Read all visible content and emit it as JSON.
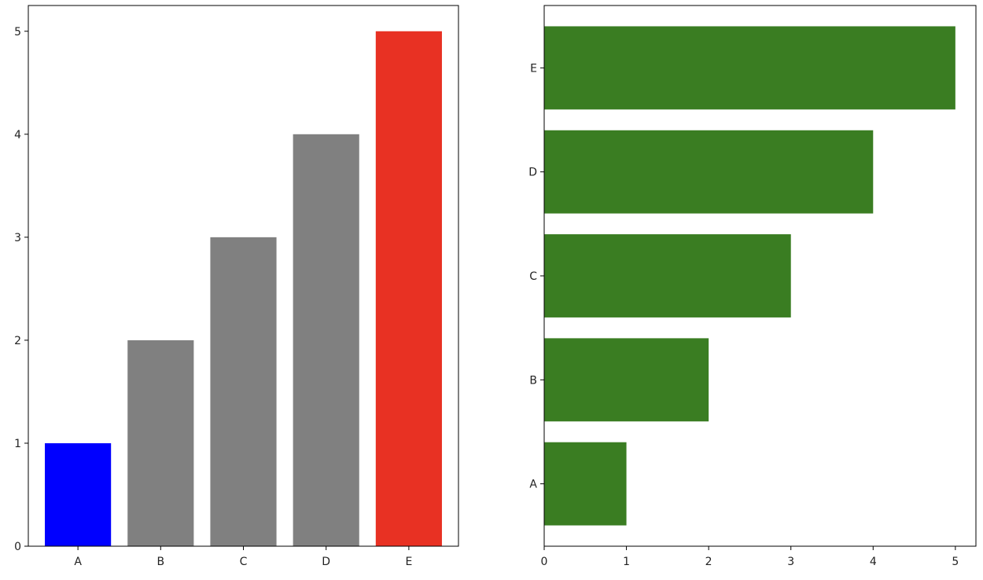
{
  "chart_data": [
    {
      "type": "bar",
      "orientation": "vertical",
      "title": "",
      "xlabel": "",
      "ylabel": "",
      "categories": [
        "A",
        "B",
        "C",
        "D",
        "E"
      ],
      "values": [
        1,
        2,
        3,
        4,
        5
      ],
      "bar_colors": [
        "#0000ff",
        "#808080",
        "#808080",
        "#808080",
        "#e83123"
      ],
      "ylim": [
        0,
        5.25
      ],
      "y_ticks": [
        "0",
        "1",
        "2",
        "3",
        "4",
        "5"
      ],
      "grid": false,
      "legend": "none"
    },
    {
      "type": "bar",
      "orientation": "horizontal",
      "title": "",
      "xlabel": "",
      "ylabel": "",
      "categories": [
        "A",
        "B",
        "C",
        "D",
        "E"
      ],
      "values": [
        1,
        2,
        3,
        4,
        5
      ],
      "bar_color": "#3a7d22",
      "xlim": [
        0,
        5.25
      ],
      "x_ticks": [
        "0",
        "1",
        "2",
        "3",
        "4",
        "5"
      ],
      "grid": false,
      "legend": "none"
    }
  ]
}
